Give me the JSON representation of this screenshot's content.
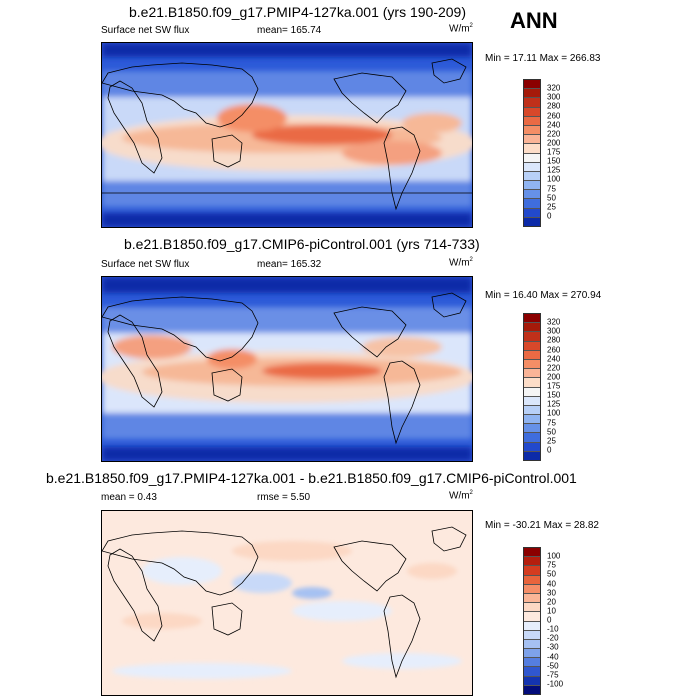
{
  "season": "ANN",
  "panels": [
    {
      "title": "b.e21.B1850.f09_g17.PMIP4-127ka.001 (yrs 190-209)",
      "variable": "Surface net SW flux",
      "stat1": "mean=  165.74",
      "stat2": "",
      "units": "W/m",
      "units_exp": "2",
      "minmax": "Min =  17.11 Max = 266.83",
      "colorbar_labels": [
        "320",
        "300",
        "280",
        "260",
        "240",
        "220",
        "200",
        "175",
        "150",
        "125",
        "100",
        "75",
        "50",
        "25",
        "0"
      ],
      "palette": "absolute"
    },
    {
      "title": "b.e21.B1850.f09_g17.CMIP6-piControl.001 (yrs 714-733)",
      "variable": "Surface net SW flux",
      "stat1": "mean=  165.32",
      "stat2": "",
      "units": "W/m",
      "units_exp": "2",
      "minmax": "Min =  16.40 Max = 270.94",
      "colorbar_labels": [
        "320",
        "300",
        "280",
        "260",
        "240",
        "220",
        "200",
        "175",
        "150",
        "125",
        "100",
        "75",
        "50",
        "25",
        "0"
      ],
      "palette": "absolute"
    },
    {
      "title": "b.e21.B1850.f09_g17.PMIP4-127ka.001 - b.e21.B1850.f09_g17.CMIP6-piControl.001",
      "variable": "mean =   0.43",
      "stat1": "rmse =   5.50",
      "stat2": "",
      "units": "W/m",
      "units_exp": "2",
      "minmax": "Min = -30.21 Max =  28.82",
      "colorbar_labels": [
        "100",
        "75",
        "50",
        "40",
        "30",
        "20",
        "10",
        "0",
        "-10",
        "-20",
        "-30",
        "-40",
        "-50",
        "-75",
        "-100"
      ],
      "palette": "difference"
    }
  ],
  "colors": {
    "absolute": [
      "#8b0000",
      "#a51a0a",
      "#c0301a",
      "#d8482a",
      "#ea6a44",
      "#f48e66",
      "#fab497",
      "#fdddc8",
      "#f5f5f5",
      "#dbe7fb",
      "#b8d0f7",
      "#90b4f1",
      "#6691e8",
      "#3f6ddd",
      "#2249cc",
      "#0c2aa8"
    ],
    "difference": [
      "#8b0000",
      "#b51e0e",
      "#d43c20",
      "#e8643c",
      "#f58e68",
      "#fab597",
      "#fcd8c4",
      "#fde9de",
      "#e6eefc",
      "#c8d9f8",
      "#a6c1f2",
      "#7ea2ea",
      "#557ee0",
      "#3057cf",
      "#1434b0",
      "#020c7a"
    ]
  }
}
